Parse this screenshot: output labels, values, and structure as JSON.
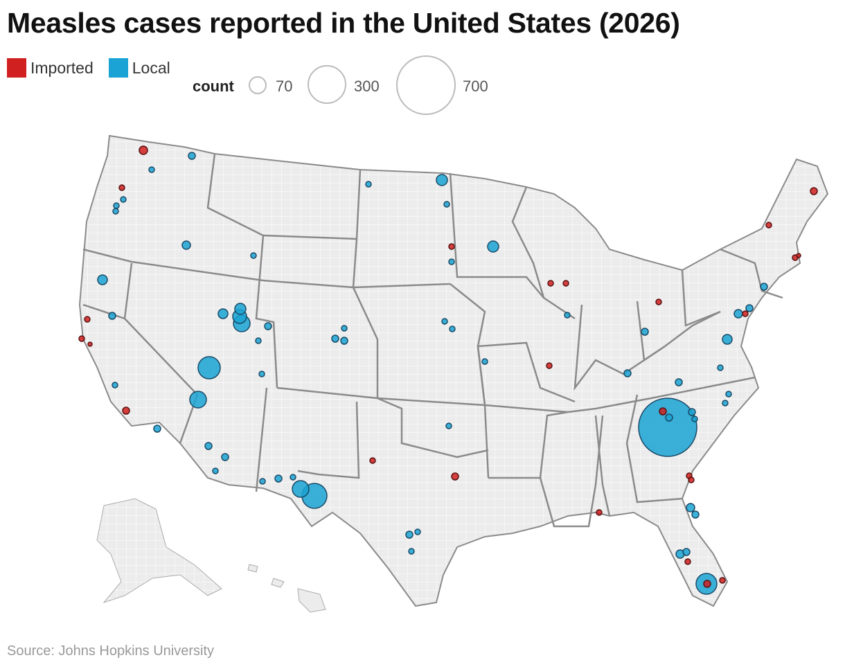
{
  "title": "Measles cases reported in the United States (2026)",
  "legend": {
    "categories": [
      {
        "label": "Imported",
        "color": "#d0201f"
      },
      {
        "label": "Local",
        "color": "#1aa3d4"
      }
    ],
    "size_title": "count",
    "size_values": [
      "70",
      "300",
      "700"
    ]
  },
  "source": "Source: Johns Hopkins University",
  "colors": {
    "land": "#ececec",
    "county_border": "#ffffff",
    "state_border": "#8a8a8a",
    "imported": "#d0201f",
    "local": "#1aa3d4"
  },
  "chart_data": {
    "type": "scatter",
    "map": "United States counties",
    "size_encoding": "count",
    "color_encoding": [
      "Imported",
      "Local"
    ],
    "points": [
      {
        "location": "Spartanburg County, SC",
        "category": "Local",
        "count": 700
      },
      {
        "location": "El Paso County, TX",
        "category": "Local",
        "count": 120
      },
      {
        "location": "Mohave County, AZ",
        "category": "Local",
        "count": 90
      },
      {
        "location": "Washington County, UT",
        "category": "Local",
        "count": 60
      },
      {
        "location": "Dona Ana County, NM",
        "category": "Local",
        "count": 55
      },
      {
        "location": "Miami-Dade County, FL",
        "category": "Local",
        "count": 80
      },
      {
        "location": "Utah County, UT",
        "category": "Local",
        "count": 45
      },
      {
        "location": "Salt Lake County, UT",
        "category": "Local",
        "count": 35
      },
      {
        "location": "Davis County, UT",
        "category": "Local",
        "count": 30
      },
      {
        "location": "Cass County, ND",
        "category": "Local",
        "count": 22
      },
      {
        "location": "Hennepin County, MN",
        "category": "Local",
        "count": 20
      },
      {
        "location": "Bannock County, ID",
        "category": "Local",
        "count": 18
      }
    ]
  }
}
